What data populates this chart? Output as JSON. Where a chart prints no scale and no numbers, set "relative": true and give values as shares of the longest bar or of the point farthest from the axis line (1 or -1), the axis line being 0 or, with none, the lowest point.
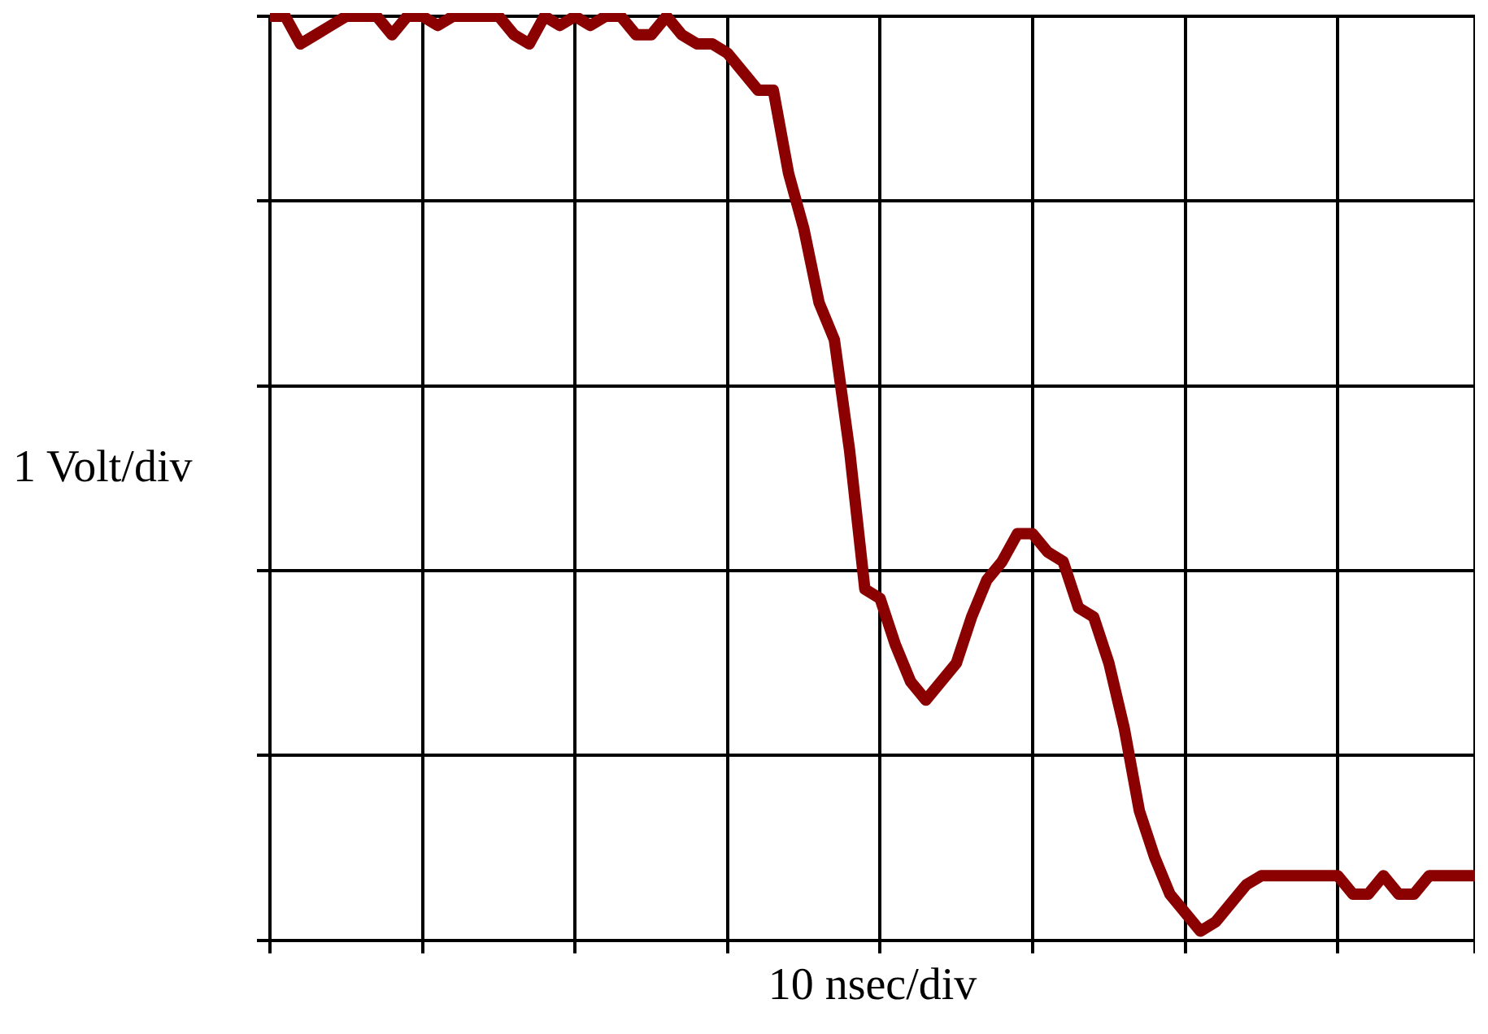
{
  "chart_data": {
    "type": "line",
    "relative": true,
    "xlabel": "10 nsec/div",
    "ylabel": "1 Volt/div",
    "grid": true,
    "legend": false,
    "marker": "none",
    "line_style": "solid",
    "categories": [
      null,
      null,
      null,
      null,
      null,
      null,
      null,
      null,
      null,
      null,
      null,
      null,
      null,
      null,
      null,
      null,
      null,
      null,
      null,
      null,
      null,
      null,
      null,
      null,
      null,
      null,
      null,
      null,
      null,
      null,
      null,
      null,
      null,
      null,
      null,
      null,
      null,
      null,
      null,
      null,
      null,
      null,
      null,
      null,
      null,
      null,
      null,
      null,
      null,
      null,
      null,
      null,
      null,
      null,
      null,
      null,
      null,
      null,
      null,
      null,
      null,
      null,
      null,
      null,
      null,
      null,
      null,
      null,
      null,
      null,
      null,
      null,
      null,
      null,
      null,
      null,
      null,
      null,
      null,
      null
    ],
    "series": [
      {
        "color": "#8b0000",
        "values": [
          1.0,
          1.0,
          0.97,
          0.98,
          0.99,
          1.0,
          1.0,
          1.0,
          0.98,
          1.0,
          1.0,
          0.99,
          1.0,
          1.0,
          1.0,
          1.0,
          0.98,
          0.97,
          1.0,
          0.99,
          1.0,
          0.99,
          1.0,
          1.0,
          0.98,
          0.98,
          1.0,
          0.98,
          0.97,
          0.97,
          0.96,
          0.94,
          0.92,
          0.92,
          0.83,
          0.77,
          0.69,
          0.65,
          0.53,
          0.38,
          0.37,
          0.32,
          0.28,
          0.26,
          0.28,
          0.3,
          0.35,
          0.39,
          0.41,
          0.44,
          0.44,
          0.42,
          0.41,
          0.36,
          0.35,
          0.3,
          0.23,
          0.14,
          0.09,
          0.05,
          0.03,
          0.01,
          0.02,
          0.04,
          0.06,
          0.07,
          0.07,
          0.07,
          0.07,
          0.07,
          0.07,
          0.05,
          0.05,
          0.07,
          0.05,
          0.05,
          0.07,
          0.07,
          0.07,
          0.07
        ]
      }
    ]
  }
}
